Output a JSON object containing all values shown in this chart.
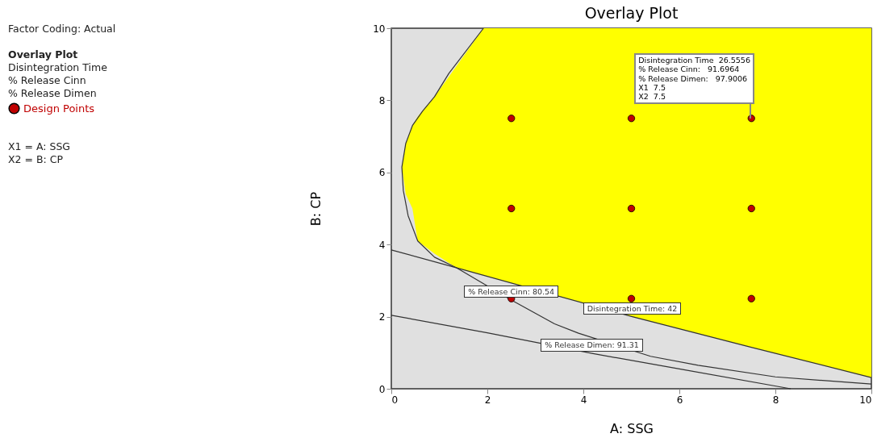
{
  "chart_data": {
    "type": "scatter",
    "title": "Overlay Plot",
    "xlabel": "A: SSG",
    "ylabel": "B: CP",
    "xlim": [
      0,
      10
    ],
    "ylim": [
      0,
      10
    ],
    "xticks": [
      0,
      2,
      4,
      6,
      8,
      10
    ],
    "yticks": [
      0,
      2,
      4,
      6,
      8,
      10
    ],
    "grid": false,
    "legend": "left",
    "annotations": [
      "Factor Coding: Actual",
      "Overlay Plot",
      "Disintegration Time",
      "% Release Cinn",
      "% Release Dimen",
      "X1 = A: SSG",
      "X2 = B: CP",
      {
        "text": "Disintegration Time  26.5556\n% Release Cinn:   91.6964\n% Release Dimen:   97.9006\nX1  7.5\nX2  7.5",
        "x": 7.5,
        "y": 7.5
      }
    ],
    "series": [
      {
        "type": "line",
        "color": "#ffff00",
        "x": [
          0.22,
          0.3,
          0.44,
          0.55,
          0.9,
          1.35,
          1.92,
          3.6,
          5.02,
          7.5,
          10
        ],
        "values": [
          null,
          null,
          null,
          null,
          null,
          null,
          null,
          null,
          null,
          null,
          null
        ],
        "upper": [
          6.15,
          6.8,
          7.3,
          7.55,
          8.1,
          8.94,
          10,
          10,
          10,
          10,
          10
        ],
        "lower": [
          6.15,
          5.4,
          5.0,
          4.1,
          3.75,
          3.36,
          3.15,
          2.53,
          2.0,
          1.15,
          0.31
        ]
      },
      {
        "type": "line",
        "name": "% Release Cinn: 80.54",
        "color": "#333333",
        "x": [
          1.92,
          1.2,
          0.9,
          0.65,
          0.44,
          0.3,
          0.22,
          0.25,
          0.35,
          0.55,
          0.9,
          1.35,
          2.5,
          3.4,
          3.9,
          5.4,
          6.39,
          8,
          10
        ],
        "values": [
          10,
          8.75,
          8.1,
          7.7,
          7.3,
          6.8,
          6.15,
          5.5,
          4.8,
          4.1,
          3.65,
          3.36,
          2.46,
          1.8,
          1.54,
          0.9,
          0.65,
          0.33,
          0.13
        ]
      },
      {
        "type": "line",
        "name": "Disintegration Time: 42",
        "color": "#333333",
        "x": [
          0,
          1.35,
          5.02,
          7.5,
          10
        ],
        "values": [
          3.85,
          3.36,
          2.0,
          1.15,
          0.31
        ]
      },
      {
        "type": "line",
        "name": "% Release Dimen: 91.31",
        "color": "#333333",
        "x": [
          0,
          2,
          4.18,
          6,
          8.32
        ],
        "values": [
          2.04,
          1.55,
          0.98,
          0.55,
          0
        ]
      },
      {
        "name": "Design Points",
        "marker": "circle",
        "color": "#c00000",
        "x": [
          2.5,
          5,
          7.5,
          2.5,
          5,
          7.5,
          2.5,
          5,
          7.5
        ],
        "values": [
          7.5,
          7.5,
          7.5,
          5,
          5,
          5,
          2.5,
          2.5,
          2.5
        ]
      }
    ]
  }
}
